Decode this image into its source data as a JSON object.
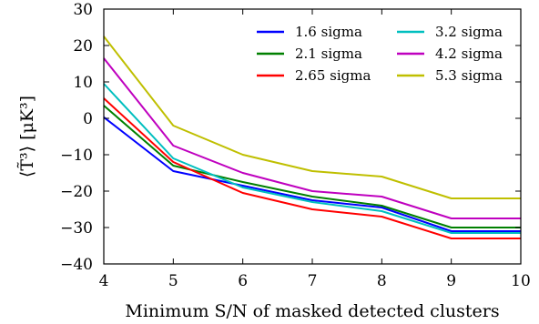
{
  "chart_data": {
    "type": "line",
    "xlabel": "Minimum S/N of masked detected clusters",
    "ylabel": "⟨T̃³⟩ [μK³]",
    "xlim": [
      4,
      10
    ],
    "ylim": [
      -40,
      30
    ],
    "x": [
      4,
      5,
      6,
      7,
      8,
      9,
      10
    ],
    "x_ticks": [
      "4",
      "5",
      "6",
      "7",
      "8",
      "9",
      "10"
    ],
    "y_ticks": [
      "30",
      "20",
      "10",
      "0",
      "−10",
      "−20",
      "−30",
      "−40"
    ],
    "y_tick_values": [
      30,
      20,
      10,
      0,
      -10,
      -20,
      -30,
      -40
    ],
    "grid": false,
    "legend_position": "top-right",
    "series": [
      {
        "name": "1.6 sigma",
        "color": "#0000ff",
        "values": [
          0.3,
          -14.5,
          -18.5,
          -22.5,
          -24.5,
          -31,
          -31
        ]
      },
      {
        "name": "2.1 sigma",
        "color": "#008000",
        "values": [
          3.5,
          -13,
          -17.5,
          -21.5,
          -24,
          -30,
          -30
        ]
      },
      {
        "name": "2.65 sigma",
        "color": "#ff0000",
        "values": [
          5.5,
          -12,
          -20.5,
          -25,
          -27,
          -33,
          -33
        ]
      },
      {
        "name": "3.2 sigma",
        "color": "#00bfbf",
        "values": [
          9.5,
          -11,
          -19,
          -23,
          -25.5,
          -31.5,
          -31.5
        ]
      },
      {
        "name": "4.2 sigma",
        "color": "#bf00bf",
        "values": [
          16.5,
          -7.5,
          -15,
          -20,
          -21.5,
          -27.5,
          -27.5
        ]
      },
      {
        "name": "5.3 sigma",
        "color": "#bfbf00",
        "values": [
          22.5,
          -2,
          -10,
          -14.5,
          -16,
          -22,
          -22
        ]
      }
    ]
  }
}
